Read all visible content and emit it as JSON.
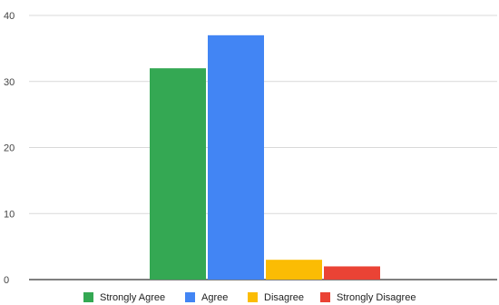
{
  "chart_data": {
    "type": "bar",
    "title": "",
    "xlabel": "",
    "ylabel": "",
    "ylim": [
      0,
      40
    ],
    "yticks": [
      "0",
      "10",
      "20",
      "30",
      "40"
    ],
    "grid": true,
    "legend_position": "bottom",
    "series": [
      {
        "name": "Strongly Agree",
        "value": 32,
        "color": "#34a853"
      },
      {
        "name": "Agree",
        "value": 37,
        "color": "#4285f4"
      },
      {
        "name": "Disagree",
        "value": 3,
        "color": "#fbbc04"
      },
      {
        "name": "Strongly Disagree",
        "value": 2,
        "color": "#ea4335"
      }
    ]
  }
}
